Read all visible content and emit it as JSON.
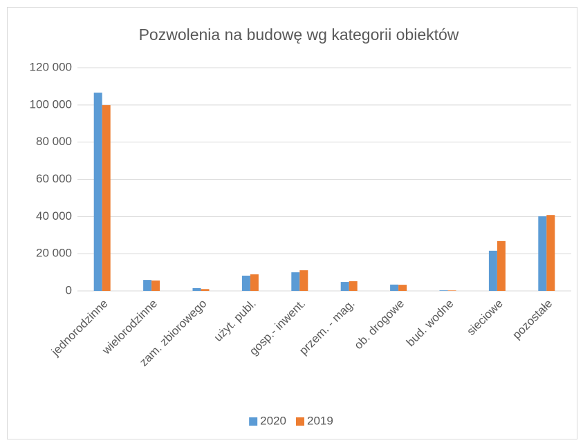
{
  "chart_data": {
    "type": "bar",
    "title": "Pozwolenia na budowę wg kategorii obiektów",
    "categories": [
      "jednorodzinne",
      "wielorodzinne",
      "zam. zbiorowego",
      "użyt. publ.",
      "gosp.- inwent.",
      "przem. - mag.",
      "ob. drogowe",
      "bud. wodne",
      "sieciowe",
      "pozostałe"
    ],
    "series": [
      {
        "name": "2020",
        "color": "#5b9bd5",
        "values": [
          106600,
          5900,
          1500,
          8200,
          10000,
          4800,
          3400,
          300,
          21600,
          40100
        ]
      },
      {
        "name": "2019",
        "color": "#ed7d31",
        "values": [
          99900,
          5600,
          1000,
          8900,
          11100,
          5200,
          3300,
          250,
          26800,
          40800
        ]
      }
    ],
    "ylim": [
      0,
      120000
    ],
    "yticks": [
      0,
      {
        "value": 20000,
        "label": "20 000"
      },
      {
        "value": 40000,
        "label": "40 000"
      },
      {
        "value": 60000,
        "label": "60 000"
      },
      {
        "value": 80000,
        "label": "80 000"
      },
      {
        "value": 100000,
        "label": "100 000"
      },
      {
        "value": 120000,
        "label": "120 000"
      }
    ],
    "grid": true,
    "legend": "bottom"
  }
}
